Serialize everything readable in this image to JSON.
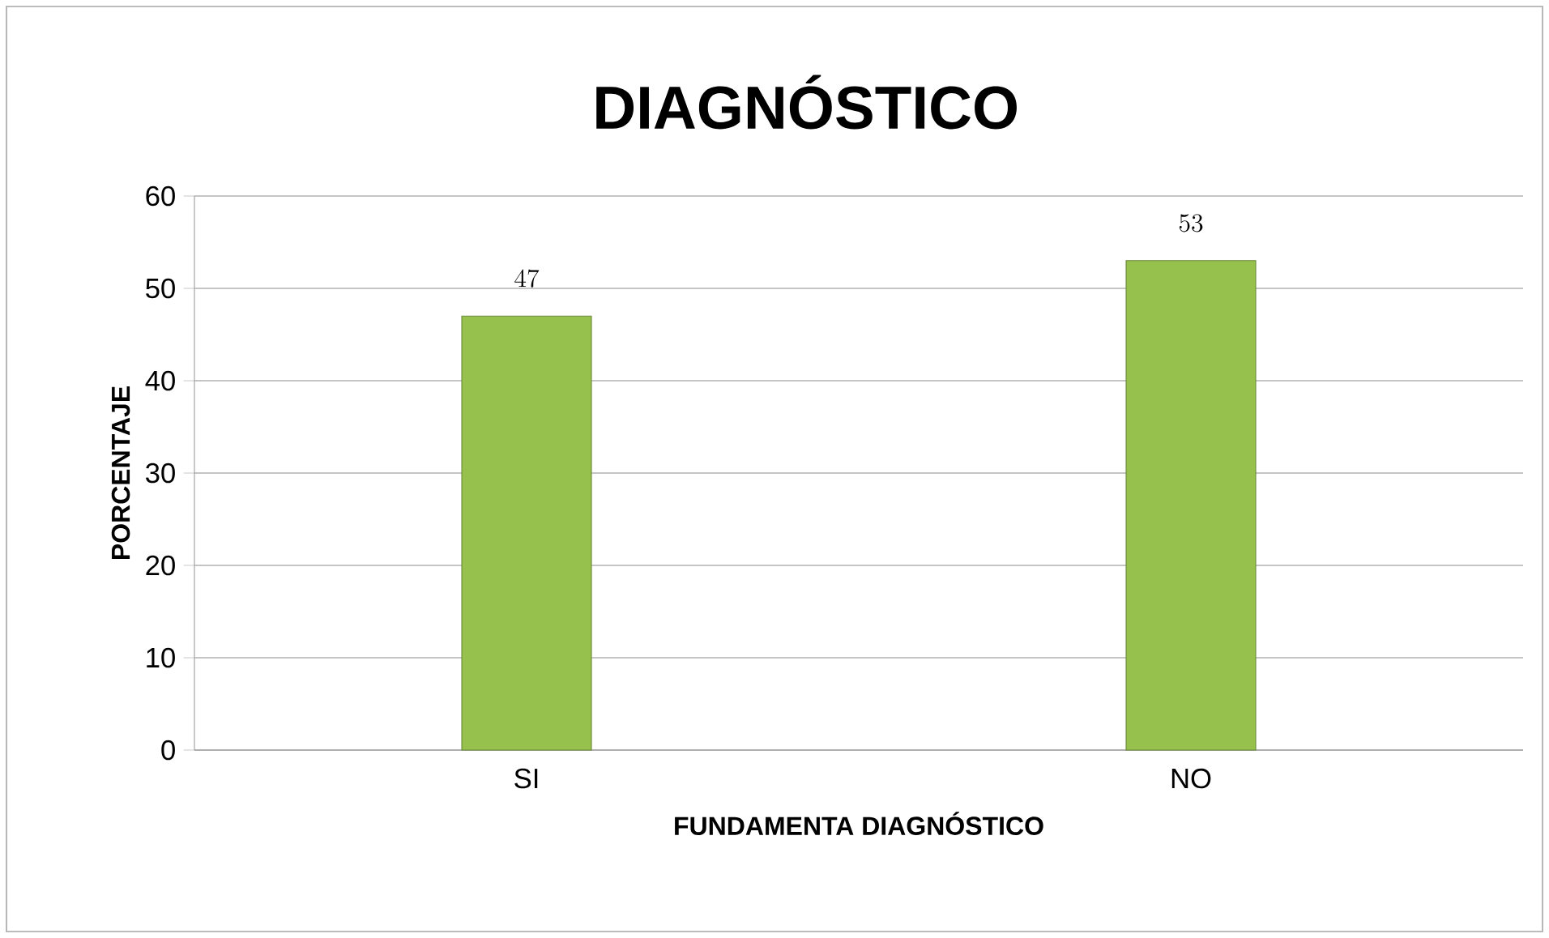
{
  "chart_data": {
    "type": "bar",
    "title": "DIAGNÓSTICO",
    "xlabel": "FUNDAMENTA DIAGNÓSTICO",
    "ylabel": "PORCENTAJE",
    "categories": [
      "SI",
      "NO"
    ],
    "values": [
      47,
      53
    ],
    "color": "#96c14d",
    "ylim": [
      0,
      60
    ],
    "yticks": [
      0,
      10,
      20,
      30,
      40,
      50,
      60
    ],
    "grid": "y",
    "data_labels": true
  }
}
